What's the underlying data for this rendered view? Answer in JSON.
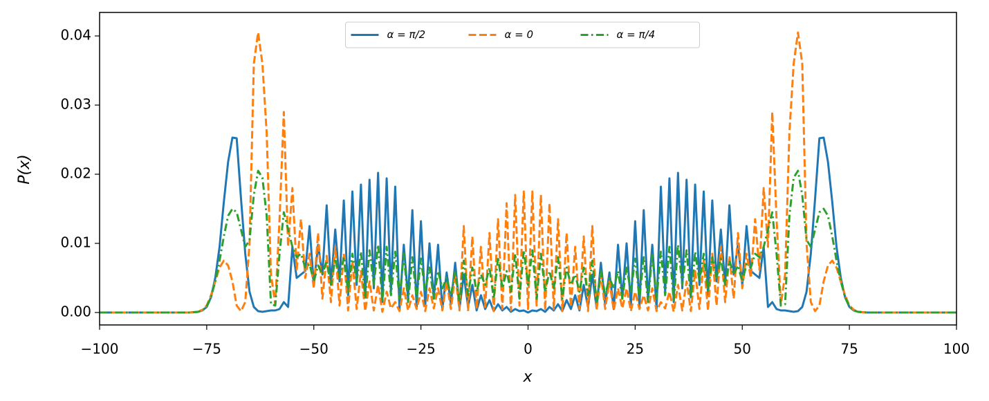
{
  "chart_data": {
    "type": "line",
    "xlabel": "x",
    "ylabel": "P(x)",
    "xlim": [
      -100,
      100
    ],
    "xticks": [
      {
        "value": -100,
        "label": "−100"
      },
      {
        "value": -75,
        "label": "−75"
      },
      {
        "value": -50,
        "label": "−50"
      },
      {
        "value": -25,
        "label": "−25"
      },
      0,
      25,
      50,
      75,
      100
    ],
    "ylim": [
      -0.0018,
      0.0434
    ],
    "yticks": [
      {
        "value": 0,
        "label": "0.00"
      },
      {
        "value": 0.01,
        "label": "0.01"
      },
      {
        "value": 0.02,
        "label": "0.02"
      },
      {
        "value": 0.03,
        "label": "0.03"
      },
      {
        "value": 0.04,
        "label": "0.04"
      }
    ],
    "grid": false,
    "legend": "upper center",
    "x": [
      -100,
      -80,
      -79,
      -78,
      -77,
      -76,
      -75,
      -74,
      -73,
      -72,
      -71,
      -70,
      -69,
      -68,
      -67,
      -66,
      -65,
      -64,
      -63,
      -62,
      -61,
      -60,
      -59,
      -58,
      -57,
      -56,
      -55,
      -54,
      -53,
      -52,
      -51,
      -50,
      -49,
      -48,
      -47,
      -46,
      -45,
      -44,
      -43,
      -42,
      -41,
      -40,
      -39,
      -38,
      -37,
      -36,
      -35,
      -34,
      -33,
      -32,
      -31,
      -30,
      -29,
      -28,
      -27,
      -26,
      -25,
      -24,
      -23,
      -22,
      -21,
      -20,
      -19,
      -18,
      -17,
      -16,
      -15,
      -14,
      -13,
      -12,
      -11,
      -10,
      -9,
      -8,
      -7,
      -6,
      -5,
      -4,
      -3,
      -2,
      -1,
      0,
      1,
      2,
      3,
      4,
      5,
      6,
      7,
      8,
      9,
      10,
      11,
      12,
      13,
      14,
      15,
      16,
      17,
      18,
      19,
      20,
      21,
      22,
      23,
      24,
      25,
      26,
      27,
      28,
      29,
      30,
      31,
      32,
      33,
      34,
      35,
      36,
      37,
      38,
      39,
      40,
      41,
      42,
      43,
      44,
      45,
      46,
      47,
      48,
      49,
      50,
      51,
      52,
      53,
      54,
      55,
      56,
      57,
      58,
      59,
      60,
      61,
      62,
      63,
      64,
      65,
      66,
      67,
      68,
      69,
      70,
      71,
      72,
      73,
      74,
      75,
      76,
      77,
      78,
      79,
      80,
      100
    ],
    "series": [
      {
        "name": "α = π/2",
        "color": "#1f77b4",
        "dash": "solid",
        "values": [
          0,
          0,
          0,
          5e-05,
          0.0001,
          0.0003,
          0.0008,
          0.0022,
          0.005,
          0.0095,
          0.016,
          0.0218,
          0.0253,
          0.0252,
          0.0165,
          0.0085,
          0.003,
          0.0008,
          0.0002,
          0.0001,
          0.0002,
          0.0003,
          0.0003,
          0.0005,
          0.0015,
          0.0008,
          0.0095,
          0.005,
          0.0055,
          0.006,
          0.0125,
          0.004,
          0.0098,
          0.0055,
          0.0155,
          0.004,
          0.012,
          0.0045,
          0.0162,
          0.0025,
          0.0175,
          0.004,
          0.0185,
          0.0022,
          0.0192,
          0.0035,
          0.0202,
          0.0015,
          0.0194,
          0.003,
          0.0182,
          0.0005,
          0.0098,
          0.002,
          0.0148,
          0.0008,
          0.0132,
          0.001,
          0.01,
          0.002,
          0.0098,
          0.0005,
          0.0058,
          0.0012,
          0.0072,
          0.0006,
          0.0055,
          0.0008,
          0.004,
          0.0003,
          0.0025,
          0.0005,
          0.0018,
          0.0002,
          0.0012,
          0.0003,
          0.0008,
          0.0001,
          0.0005,
          0.0002,
          0.0003,
          0,
          0.0003,
          0.0002,
          0.0005,
          0.0001,
          0.0008,
          0.0003,
          0.0012,
          0.0002,
          0.0018,
          0.0005,
          0.0025,
          0.0003,
          0.004,
          0.0008,
          0.0055,
          0.0006,
          0.0072,
          0.0012,
          0.0058,
          0.0005,
          0.0098,
          0.002,
          0.01,
          0.001,
          0.0132,
          0.0008,
          0.0148,
          0.002,
          0.0098,
          0.0005,
          0.0182,
          0.003,
          0.0194,
          0.0015,
          0.0202,
          0.0035,
          0.0192,
          0.0022,
          0.0185,
          0.004,
          0.0175,
          0.0025,
          0.0162,
          0.0045,
          0.012,
          0.004,
          0.0155,
          0.0055,
          0.0098,
          0.004,
          0.0125,
          0.006,
          0.0055,
          0.005,
          0.0095,
          0.0008,
          0.0015,
          0.0005,
          0.0003,
          0.0003,
          0.0002,
          0.0001,
          0.0002,
          0.0008,
          0.003,
          0.0085,
          0.0165,
          0.0252,
          0.0253,
          0.0218,
          0.016,
          0.0095,
          0.005,
          0.0022,
          0.0008,
          0.0003,
          0.0001,
          5e-05,
          0,
          0,
          0
        ]
      },
      {
        "name": "α = 0",
        "color": "#ff7f0e",
        "dash": "dashed",
        "values": [
          0,
          0,
          0,
          5e-05,
          0.0001,
          0.0004,
          0.001,
          0.0025,
          0.0045,
          0.0065,
          0.0075,
          0.0068,
          0.0045,
          0.001,
          0.0002,
          0.0015,
          0.01,
          0.036,
          0.0405,
          0.036,
          0.026,
          0.0055,
          0.0012,
          0.0135,
          0.029,
          0.0095,
          0.018,
          0.0062,
          0.0135,
          0.005,
          0.0085,
          0.0035,
          0.0115,
          0.002,
          0.0082,
          0.0015,
          0.0095,
          0.001,
          0.0085,
          0.0003,
          0.0075,
          0.0005,
          0.006,
          0.0002,
          0.0045,
          0.0003,
          0.004,
          0.0001,
          0.003,
          0.0006,
          0.0015,
          0.0002,
          0.0035,
          0.0003,
          0.0025,
          0.0005,
          0.003,
          0.0002,
          0.0035,
          0.0006,
          0.0035,
          0.0003,
          0.0045,
          0.0005,
          0.0055,
          0.0003,
          0.0125,
          0.0002,
          0.011,
          0.0005,
          0.0095,
          0.0008,
          0.0115,
          0.0002,
          0.0135,
          0.0005,
          0.0158,
          0.0003,
          0.017,
          0.001,
          0.0175,
          0.0005,
          0.0175,
          0.001,
          0.017,
          0.0003,
          0.0158,
          0.0005,
          0.0135,
          0.0002,
          0.0115,
          0.0008,
          0.0095,
          0.0005,
          0.011,
          0.0002,
          0.0125,
          0.0003,
          0.0055,
          0.0005,
          0.0045,
          0.0003,
          0.0035,
          0.0006,
          0.0035,
          0.0002,
          0.003,
          0.0005,
          0.0025,
          0.0003,
          0.0035,
          0.0002,
          0.0015,
          0.0006,
          0.003,
          0.0001,
          0.004,
          0.0003,
          0.0045,
          0.0002,
          0.006,
          0.0005,
          0.0075,
          0.0003,
          0.0085,
          0.001,
          0.0095,
          0.0015,
          0.0082,
          0.002,
          0.0115,
          0.0035,
          0.0085,
          0.005,
          0.0135,
          0.0062,
          0.018,
          0.0095,
          0.029,
          0.0135,
          0.0012,
          0.0055,
          0.026,
          0.036,
          0.0405,
          0.036,
          0.01,
          0.0015,
          0.0002,
          0.001,
          0.0045,
          0.0068,
          0.0075,
          0.0065,
          0.0045,
          0.0025,
          0.001,
          0.0004,
          0.0001,
          5e-05,
          0,
          0,
          0
        ]
      },
      {
        "name": "α = π/4",
        "color": "#2ca02c",
        "dash": "dashdot",
        "values": [
          0,
          0,
          0,
          5e-05,
          0.0001,
          0.0003,
          0.0009,
          0.0022,
          0.0045,
          0.0075,
          0.011,
          0.014,
          0.015,
          0.0145,
          0.012,
          0.0095,
          0.0105,
          0.017,
          0.0205,
          0.0195,
          0.014,
          0.0012,
          0.001,
          0.0085,
          0.0145,
          0.012,
          0.0095,
          0.008,
          0.0085,
          0.0065,
          0.007,
          0.0045,
          0.0068,
          0.0055,
          0.0075,
          0.004,
          0.0078,
          0.005,
          0.008,
          0.003,
          0.0085,
          0.0045,
          0.0088,
          0.002,
          0.009,
          0.004,
          0.0098,
          0.0015,
          0.0095,
          0.0025,
          0.0088,
          0.002,
          0.0085,
          0.0015,
          0.008,
          0.002,
          0.0078,
          0.003,
          0.0065,
          0.002,
          0.006,
          0.0035,
          0.005,
          0.0025,
          0.006,
          0.0015,
          0.0075,
          0.0025,
          0.0065,
          0.003,
          0.0055,
          0.004,
          0.0065,
          0.002,
          0.008,
          0.0035,
          0.006,
          0.003,
          0.0085,
          0.002,
          0.009,
          0.004,
          0.009,
          0.002,
          0.0085,
          0.003,
          0.006,
          0.0035,
          0.008,
          0.002,
          0.0065,
          0.004,
          0.0055,
          0.003,
          0.0065,
          0.0025,
          0.0075,
          0.0015,
          0.006,
          0.0025,
          0.005,
          0.0035,
          0.006,
          0.002,
          0.0065,
          0.003,
          0.0078,
          0.002,
          0.008,
          0.0015,
          0.0085,
          0.002,
          0.0088,
          0.0025,
          0.0095,
          0.0015,
          0.0098,
          0.004,
          0.009,
          0.002,
          0.0088,
          0.0045,
          0.0085,
          0.003,
          0.008,
          0.005,
          0.0078,
          0.004,
          0.0075,
          0.0055,
          0.0068,
          0.0045,
          0.007,
          0.0065,
          0.0085,
          0.008,
          0.0095,
          0.012,
          0.0145,
          0.0085,
          0.001,
          0.0012,
          0.014,
          0.0195,
          0.0205,
          0.017,
          0.0105,
          0.0095,
          0.012,
          0.0145,
          0.015,
          0.014,
          0.011,
          0.0075,
          0.0045,
          0.0022,
          0.0009,
          0.0003,
          0.0001,
          5e-05,
          0,
          0,
          0
        ]
      }
    ]
  }
}
